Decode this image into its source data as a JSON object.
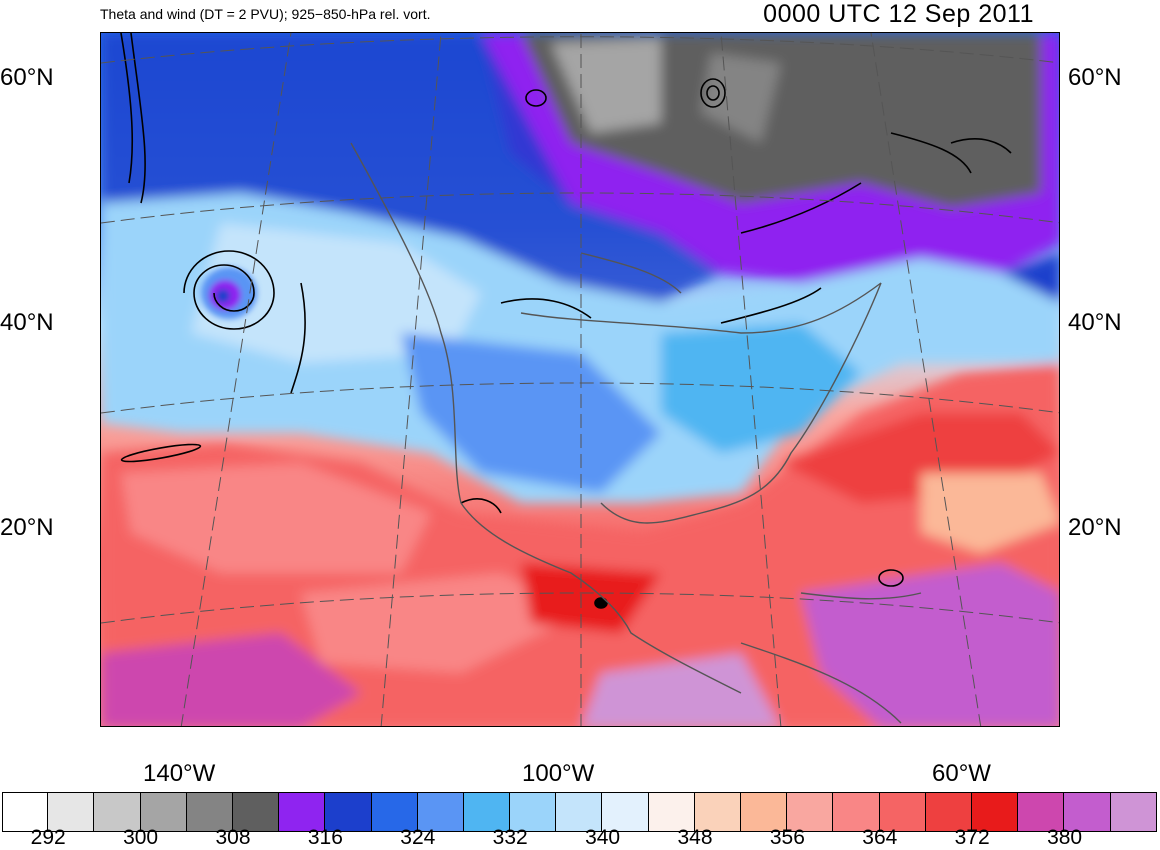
{
  "title_left": "Theta and wind (DT = 2 PVU); 925−850-hPa rel. vort.",
  "title_right": "0000 UTC 12 Sep 2011",
  "map": {
    "lat_labels": [
      "60°N",
      "40°N",
      "20°N"
    ],
    "lon_labels": [
      "140°W",
      "100°W",
      "60°W"
    ]
  },
  "colorbar": {
    "colors": [
      "#ffffff",
      "#e6e6e6",
      "#c8c8c8",
      "#a5a5a5",
      "#848484",
      "#5f5f5f",
      "#8f24f0",
      "#1c3fcc",
      "#2768e8",
      "#5a95f4",
      "#4fb5f2",
      "#9bd4fa",
      "#c4e4fb",
      "#e3f1fd",
      "#fcf1ec",
      "#fad2ba",
      "#fbb898",
      "#f9a7a0",
      "#f98686",
      "#f56464",
      "#ee4040",
      "#e81b1b",
      "#cd47ae",
      "#c35dce",
      "#cf94d6"
    ],
    "labels": [
      "292",
      "300",
      "308",
      "316",
      "324",
      "332",
      "340",
      "348",
      "356",
      "364",
      "372",
      "380"
    ]
  }
}
